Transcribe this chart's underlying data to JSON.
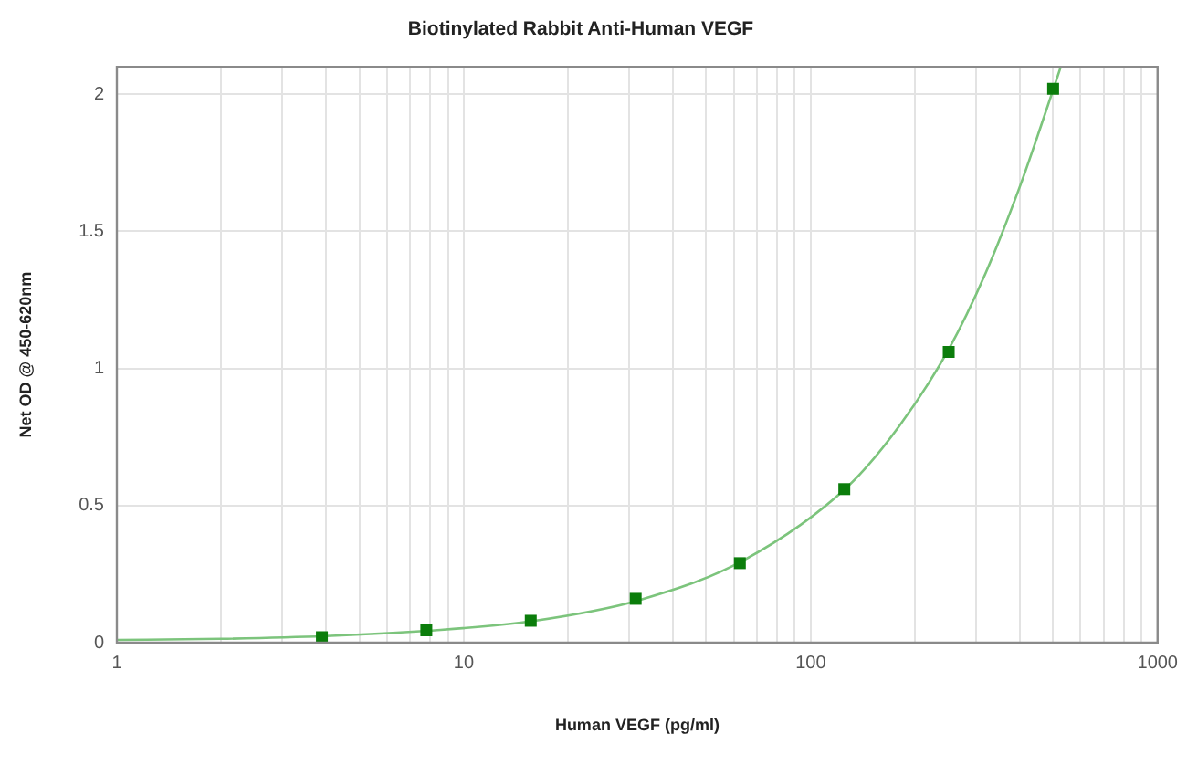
{
  "chart_data": {
    "type": "scatter",
    "title": "Biotinylated Rabbit Anti-Human VEGF",
    "xlabel": "Human VEGF (pg/ml)",
    "ylabel": "Net OD @ 450-620nm",
    "log": "x",
    "xlim": [
      1,
      1000
    ],
    "xticks": [
      1,
      {
        "value": 2,
        "label": null
      },
      {
        "value": 3,
        "label": null
      },
      {
        "value": 4,
        "label": null
      },
      {
        "value": 5,
        "label": null
      },
      {
        "value": 6,
        "label": null
      },
      {
        "value": 7,
        "label": null
      },
      {
        "value": 8,
        "label": null
      },
      {
        "value": 9,
        "label": null
      },
      10,
      {
        "value": 20,
        "label": null
      },
      {
        "value": 30,
        "label": null
      },
      {
        "value": 40,
        "label": null
      },
      {
        "value": 50,
        "label": null
      },
      {
        "value": 60,
        "label": null
      },
      {
        "value": 70,
        "label": null
      },
      {
        "value": 80,
        "label": null
      },
      {
        "value": 90,
        "label": null
      },
      100,
      {
        "value": 200,
        "label": null
      },
      {
        "value": 300,
        "label": null
      },
      {
        "value": 400,
        "label": null
      },
      {
        "value": 500,
        "label": null
      },
      {
        "value": 600,
        "label": null
      },
      {
        "value": 700,
        "label": null
      },
      {
        "value": 800,
        "label": null
      },
      {
        "value": 900,
        "label": null
      },
      1000
    ],
    "ylim": [
      0,
      2.1
    ],
    "yticks": [
      0,
      0.5,
      1,
      1.5,
      2
    ],
    "grid": true,
    "marker": "square",
    "series": [
      {
        "color": "#0b7d0b",
        "x": [
          3.9,
          7.8,
          15.6,
          31.3,
          62.5,
          125,
          250,
          500
        ],
        "values": [
          0.02,
          0.045,
          0.08,
          0.16,
          0.29,
          0.56,
          1.06,
          2.02
        ]
      },
      {
        "type": "line",
        "color": "#7cc47c",
        "marker": "none",
        "x": [
          1,
          2,
          4,
          8,
          16,
          32,
          64,
          128,
          180,
          250,
          320,
          400,
          460,
          526
        ],
        "values": [
          0.01,
          0.014,
          0.024,
          0.044,
          0.08,
          0.155,
          0.3,
          0.57,
          0.79,
          1.07,
          1.35,
          1.66,
          1.88,
          2.1
        ]
      }
    ]
  }
}
